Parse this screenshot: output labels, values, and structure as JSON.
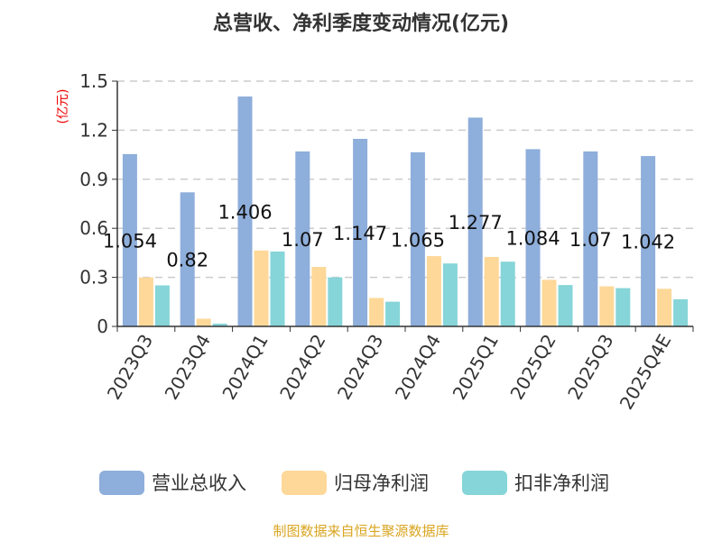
{
  "chart_data": {
    "type": "bar",
    "title": "总营收、净利季度变动情况(亿元)",
    "ylabel": "(亿元)",
    "xlabel": "",
    "ylim": [
      0,
      1.5
    ],
    "yticks": [
      0,
      0.3,
      0.6,
      0.9,
      1.2,
      1.5
    ],
    "ytick_labels": [
      "0",
      "0.3",
      "0.6",
      "0.9",
      "1.2",
      "1.5"
    ],
    "grid": true,
    "legend_position": "bottom",
    "categories": [
      "2023Q3",
      "2023Q4",
      "2024Q1",
      "2024Q2",
      "2024Q3",
      "2024Q4",
      "2025Q1",
      "2025Q2",
      "2025Q3",
      "2025Q4E"
    ],
    "series": [
      {
        "name": "营业总收入",
        "color": "#8eaedb",
        "values": [
          1.054,
          0.82,
          1.406,
          1.07,
          1.147,
          1.065,
          1.277,
          1.084,
          1.07,
          1.042
        ],
        "data_labels": [
          "1.054",
          "0.82",
          "1.406",
          "1.07",
          "1.147",
          "1.065",
          "1.277",
          "1.084",
          "1.07",
          "1.042"
        ]
      },
      {
        "name": "归母净利润",
        "color": "#fdd899",
        "values": [
          0.3,
          0.047,
          0.464,
          0.364,
          0.174,
          0.43,
          0.425,
          0.285,
          0.245,
          0.23
        ]
      },
      {
        "name": "扣非净利润",
        "color": "#86d5d8",
        "values": [
          0.251,
          0.017,
          0.458,
          0.3,
          0.151,
          0.385,
          0.396,
          0.253,
          0.234,
          0.166
        ]
      }
    ]
  },
  "footer": {
    "source": "制图数据来自恒生聚源数据库"
  }
}
